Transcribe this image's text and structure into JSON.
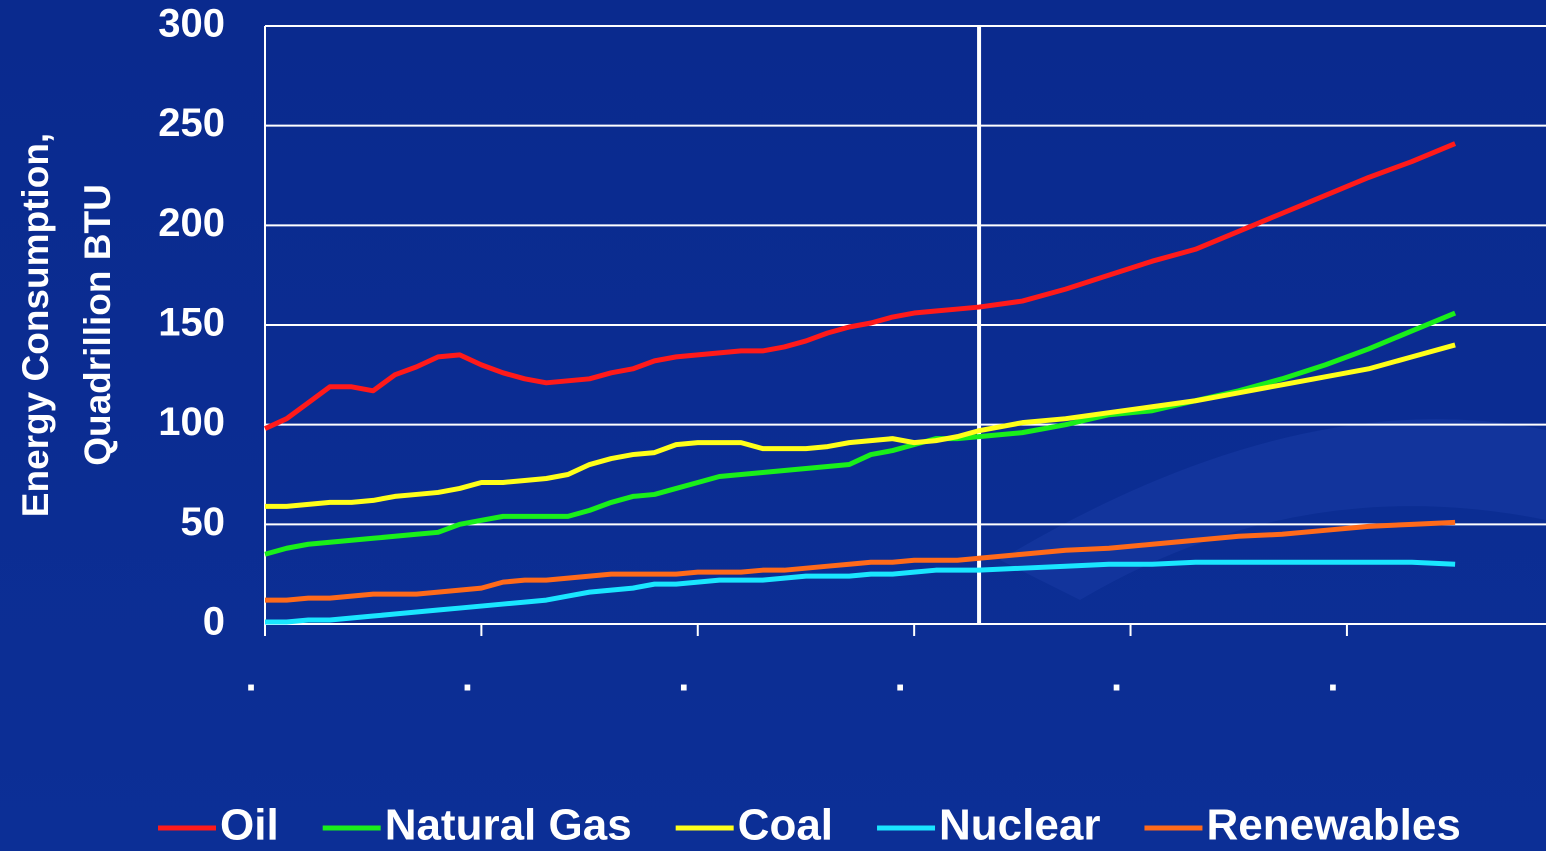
{
  "chart_data": {
    "type": "line",
    "y_label": [
      "Energy Consumption,",
      "Quadrillion BTU"
    ],
    "x": [
      0,
      1,
      2,
      3,
      4,
      5,
      6,
      7,
      8,
      9,
      10,
      11,
      12,
      13,
      14,
      15,
      16,
      17,
      18,
      19,
      20,
      21,
      22,
      23,
      24,
      25,
      26,
      27,
      28,
      29,
      30,
      31,
      32,
      33,
      35,
      37,
      39,
      41,
      43,
      45,
      47,
      49,
      51,
      53,
      55
    ],
    "series": [
      {
        "name": "Oil",
        "color": "#ff1a1a",
        "values": [
          98,
          103,
          111,
          119,
          119,
          117,
          125,
          129,
          134,
          135,
          130,
          126,
          123,
          121,
          122,
          123,
          126,
          128,
          132,
          134,
          135,
          136,
          137,
          137,
          139,
          142,
          146,
          149,
          151,
          154,
          156,
          157,
          158,
          159,
          162,
          168,
          175,
          182,
          188,
          197,
          206,
          215,
          224,
          232,
          241
        ]
      },
      {
        "name": "Natural Gas",
        "color": "#1aef1a",
        "values": [
          35,
          38,
          40,
          41,
          42,
          43,
          44,
          45,
          46,
          50,
          52,
          54,
          54,
          54,
          54,
          57,
          61,
          64,
          65,
          68,
          71,
          74,
          75,
          76,
          77,
          78,
          79,
          80,
          85,
          87,
          90,
          93,
          93,
          94,
          96,
          100,
          105,
          107,
          112,
          117,
          123,
          130,
          138,
          147,
          156
        ]
      },
      {
        "name": "Coal",
        "color": "#ffff1a",
        "values": [
          59,
          59,
          60,
          61,
          61,
          62,
          64,
          65,
          66,
          68,
          71,
          71,
          72,
          73,
          75,
          80,
          83,
          85,
          86,
          90,
          91,
          91,
          91,
          88,
          88,
          88,
          89,
          91,
          92,
          93,
          91,
          92,
          94,
          97,
          101,
          103,
          106,
          109,
          112,
          116,
          120,
          124,
          128,
          134,
          140
        ]
      },
      {
        "name": "Nuclear",
        "color": "#1ae6ff",
        "values": [
          1,
          1,
          2,
          2,
          3,
          4,
          5,
          6,
          7,
          8,
          9,
          10,
          11,
          12,
          14,
          16,
          17,
          18,
          20,
          20,
          21,
          22,
          22,
          22,
          23,
          24,
          24,
          24,
          25,
          25,
          26,
          27,
          27,
          27,
          28,
          29,
          30,
          30,
          31,
          31,
          31,
          31,
          31,
          31,
          30
        ]
      },
      {
        "name": "Renewables",
        "color": "#ff6a1a",
        "values": [
          12,
          12,
          13,
          13,
          14,
          15,
          15,
          15,
          16,
          17,
          18,
          21,
          22,
          22,
          23,
          24,
          25,
          25,
          25,
          25,
          26,
          26,
          26,
          27,
          27,
          28,
          29,
          30,
          31,
          31,
          32,
          32,
          32,
          33,
          35,
          37,
          38,
          40,
          42,
          44,
          45,
          47,
          49,
          50,
          51
        ]
      }
    ],
    "xlim": [
      0,
      59.2
    ],
    "xticks": [
      {
        "value": 0,
        "label": "."
      },
      {
        "value": 10,
        "label": "."
      },
      {
        "value": 20,
        "label": "."
      },
      {
        "value": 30,
        "label": "."
      },
      {
        "value": 40,
        "label": "."
      },
      {
        "value": 50,
        "label": "."
      }
    ],
    "divider_x": 33,
    "ylim": [
      0,
      300
    ],
    "yticks": [
      0,
      50,
      100,
      150,
      200,
      250,
      300
    ],
    "grid": true,
    "legend": "bottom"
  }
}
